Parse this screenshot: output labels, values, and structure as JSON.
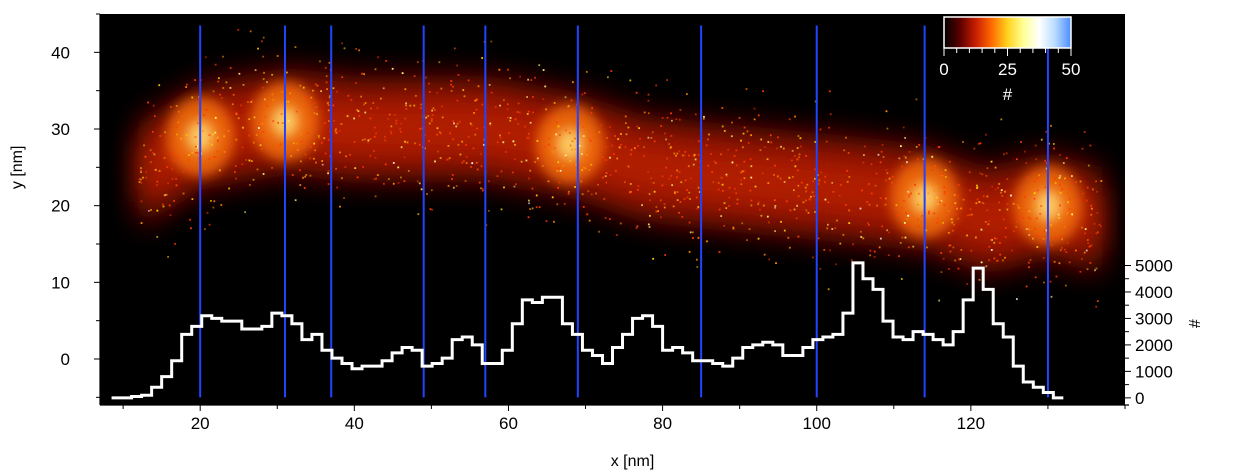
{
  "chart_data": {
    "type": "heatmap",
    "description_of_overlay": "",
    "xlabel": "x [nm]",
    "ylabel": "y [nm]",
    "y2label": "#",
    "xlim": [
      7,
      140
    ],
    "ylim": [
      -6,
      45
    ],
    "y2lim": [
      -270,
      14500
    ],
    "x_ticks": [
      20,
      40,
      60,
      80,
      100,
      120
    ],
    "y_ticks": [
      0,
      10,
      20,
      30,
      40
    ],
    "y2_ticks": [
      0,
      1000,
      2000,
      3000,
      4000,
      5000
    ],
    "colorbar": {
      "label": "#",
      "range": [
        0,
        50
      ],
      "ticks": [
        0,
        25,
        50
      ],
      "colors": [
        "#000000",
        "#5a0000",
        "#c81e00",
        "#ff6a00",
        "#ffd21e",
        "#ffff96",
        "#ffffff",
        "#b9dcff",
        "#4a8cff"
      ]
    },
    "heatmap_background": "#000000",
    "density_ridge": {
      "x": [
        12,
        20,
        31,
        40,
        48,
        57,
        68,
        77,
        85,
        95,
        105,
        114,
        122,
        130,
        137
      ],
      "y": [
        24,
        29,
        31,
        30,
        30,
        30,
        28,
        25,
        24,
        23,
        22,
        21,
        18,
        20,
        18
      ],
      "peak_x": [
        20,
        31,
        68,
        114,
        130
      ]
    },
    "vertical_lines": {
      "color": "#2244ff",
      "x": [
        20,
        31,
        37,
        49,
        57,
        69,
        85,
        100,
        114,
        130
      ]
    },
    "histogram": {
      "axis": "y2",
      "color": "#ffffff",
      "bin_width": 1.3,
      "x_start": 8.5,
      "counts": [
        0,
        0,
        50,
        100,
        400,
        800,
        1400,
        2400,
        2700,
        3100,
        3000,
        2900,
        2900,
        2600,
        2600,
        2700,
        3200,
        3100,
        2800,
        2200,
        2400,
        1800,
        1500,
        1300,
        1100,
        1200,
        1200,
        1400,
        1700,
        1900,
        1800,
        1200,
        1300,
        1500,
        2200,
        2300,
        2000,
        1300,
        1300,
        1800,
        2800,
        3700,
        3600,
        3800,
        3800,
        2800,
        2400,
        1800,
        1600,
        1300,
        1900,
        2400,
        3000,
        3100,
        2700,
        1800,
        1900,
        1700,
        1400,
        1400,
        1300,
        1200,
        1500,
        1900,
        2000,
        2100,
        2000,
        1600,
        1600,
        1900,
        2200,
        2300,
        2400,
        3200,
        5100,
        4500,
        4100,
        2900,
        2300,
        2200,
        2500,
        2400,
        2200,
        2000,
        2500,
        3700,
        4900,
        4100,
        2800,
        2300,
        1200,
        600,
        400,
        200,
        0
      ]
    }
  }
}
